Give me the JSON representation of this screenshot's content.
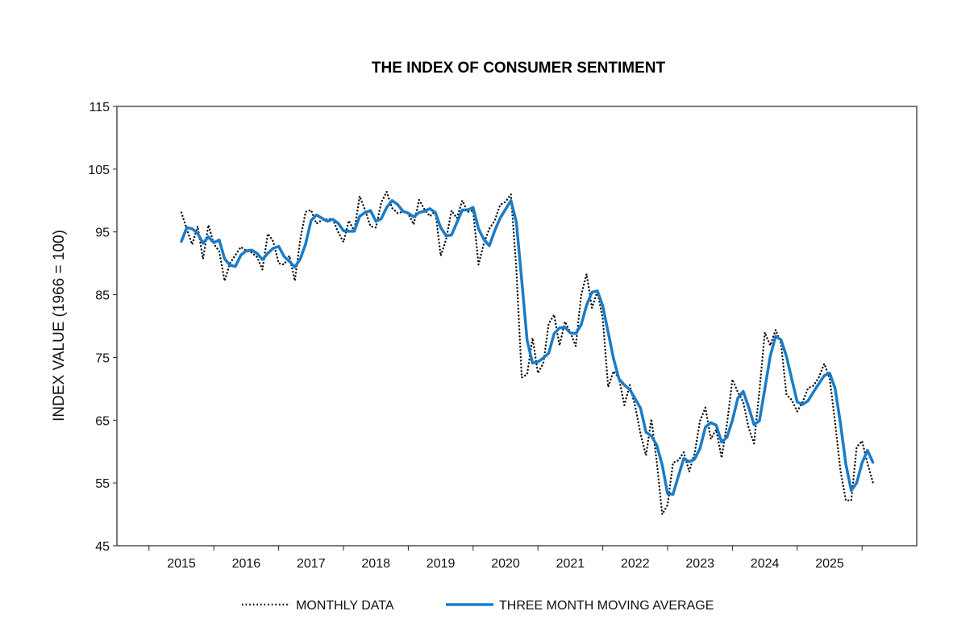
{
  "chart_data": {
    "type": "line",
    "title": "THE INDEX OF CONSUMER SENTIMENT",
    "xlabel": "",
    "ylabel": "INDEX VALUE (1966 = 100)",
    "ylim": [
      45,
      115
    ],
    "yticks": [
      45,
      55,
      65,
      75,
      85,
      95,
      105,
      115
    ],
    "xticks": [
      "2015",
      "2016",
      "2017",
      "2018",
      "2019",
      "2020",
      "2021",
      "2022",
      "2023",
      "2024",
      "2025"
    ],
    "x_unit": "month",
    "grid": false,
    "legend_placement": "bottom",
    "series": [
      {
        "name": "MONTHLY DATA",
        "color": "#111111",
        "style": "dotted",
        "values_by_year": {
          "2015": [
            98.1,
            95.4,
            93.0,
            95.9,
            90.7,
            96.1,
            93.1,
            91.9,
            87.2,
            90.0,
            91.3,
            92.6
          ],
          "2016": [
            92.0,
            91.7,
            91.0,
            89.0,
            94.7,
            93.5,
            90.0,
            89.8,
            91.2,
            87.2,
            93.8,
            98.2
          ],
          "2017": [
            98.5,
            96.3,
            96.9,
            97.0,
            97.1,
            95.0,
            93.4,
            96.8,
            95.1,
            100.7,
            98.5,
            95.9
          ],
          "2018": [
            95.7,
            99.7,
            101.4,
            98.8,
            98.0,
            98.2,
            97.9,
            96.2,
            100.1,
            98.6,
            97.5,
            98.3
          ],
          "2019": [
            91.2,
            93.8,
            98.4,
            97.2,
            100.0,
            98.2,
            98.4,
            89.8,
            93.2,
            95.5,
            96.8,
            99.3
          ],
          "2020": [
            99.8,
            101.0,
            89.1,
            71.8,
            72.3,
            78.1,
            72.5,
            74.1,
            80.4,
            81.8,
            76.9,
            80.7
          ],
          "2021": [
            79.0,
            76.8,
            84.9,
            88.3,
            82.9,
            85.5,
            81.2,
            70.3,
            72.8,
            71.7,
            67.4,
            70.6
          ],
          "2022": [
            67.2,
            62.8,
            59.4,
            65.2,
            58.4,
            50.0,
            51.5,
            58.2,
            58.6,
            59.9,
            56.8,
            59.7
          ],
          "2023": [
            64.9,
            67.0,
            62.0,
            63.5,
            59.0,
            64.4,
            71.5,
            69.5,
            67.9,
            63.8,
            61.3,
            69.7
          ],
          "2024": [
            79.0,
            76.9,
            79.4,
            77.2,
            69.1,
            68.2,
            66.4,
            67.9,
            70.1,
            70.5,
            71.8,
            74.0
          ],
          "2025": [
            71.7,
            64.7,
            57.0,
            52.2,
            52.2,
            60.7,
            61.7,
            58.2,
            55.1
          ]
        }
      },
      {
        "name": "THREE MONTH MOVING AVERAGE",
        "color": "#1a7cc8",
        "style": "solid",
        "values_by_year": {
          "2015": [
            93.5,
            95.7,
            95.5,
            94.8,
            93.2,
            94.2,
            93.3,
            93.7,
            90.7,
            89.7,
            89.5,
            91.3
          ],
          "2016": [
            92.0,
            92.1,
            91.6,
            90.6,
            91.6,
            92.4,
            92.7,
            91.1,
            90.3,
            89.4,
            90.7,
            93.1
          ],
          "2017": [
            96.8,
            97.7,
            97.2,
            96.7,
            97.0,
            96.4,
            95.2,
            95.1,
            95.1,
            97.5,
            98.1,
            98.4
          ],
          "2018": [
            96.7,
            97.1,
            98.9,
            100.0,
            99.4,
            98.3,
            98.0,
            97.4,
            98.1,
            98.3,
            98.7,
            98.1
          ],
          "2019": [
            95.7,
            94.4,
            94.5,
            96.5,
            98.5,
            98.5,
            98.9,
            95.5,
            93.8,
            92.8,
            95.2,
            97.2
          ],
          "2020": [
            98.6,
            100.0,
            96.6,
            87.3,
            77.7,
            74.1,
            74.3,
            74.9,
            75.7,
            78.8,
            79.7,
            79.8
          ],
          "2021": [
            78.9,
            78.8,
            80.2,
            83.3,
            85.4,
            85.6,
            83.2,
            79.0,
            74.8,
            71.6,
            70.6,
            69.9
          ],
          "2022": [
            68.4,
            66.9,
            63.1,
            62.5,
            61.0,
            57.9,
            53.3,
            53.2,
            56.1,
            58.9,
            58.4,
            58.8
          ],
          "2023": [
            60.5,
            63.9,
            64.6,
            64.2,
            61.5,
            62.3,
            65.0,
            68.5,
            69.6,
            67.1,
            64.3,
            64.9
          ],
          "2024": [
            70.0,
            75.2,
            78.4,
            77.8,
            75.2,
            71.5,
            67.9,
            67.5,
            68.1,
            69.5,
            70.8,
            72.1
          ],
          "2025": [
            72.5,
            70.1,
            64.5,
            58.0,
            53.8,
            55.0,
            58.2,
            60.2,
            58.3
          ]
        }
      }
    ]
  }
}
